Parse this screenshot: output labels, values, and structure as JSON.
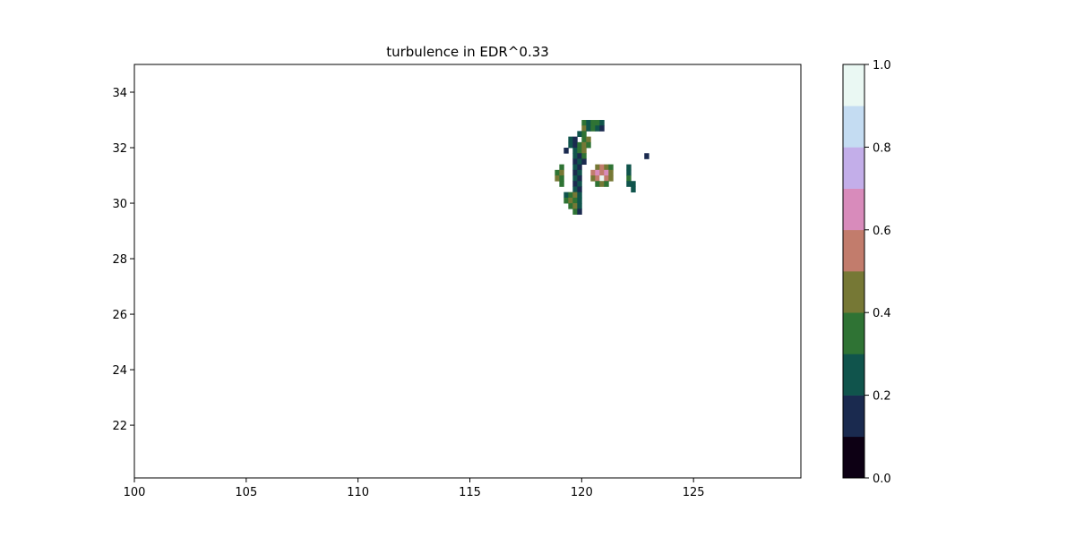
{
  "chart_data": {
    "type": "heatmap",
    "title": "turbulence in EDR^0.33",
    "xlabel": "",
    "ylabel": "",
    "xlim": [
      100,
      129.8
    ],
    "ylim": [
      20.1,
      35.0
    ],
    "x_ticks": [
      100,
      105,
      110,
      115,
      120,
      125
    ],
    "y_ticks": [
      22,
      24,
      26,
      28,
      30,
      32,
      34
    ],
    "grid": false,
    "colorbar": {
      "range": [
        0.0,
        1.0
      ],
      "bins": 10,
      "ticks": [
        0.0,
        0.2,
        0.4,
        0.6,
        0.8,
        1.0
      ],
      "tick_labels": [
        "0.0",
        "0.2",
        "0.4",
        "0.6",
        "0.8",
        "1.0"
      ],
      "colors": [
        "#0d0014",
        "#1a2a4f",
        "#10544c",
        "#2f7334",
        "#767835",
        "#c27c6c",
        "#d88bbb",
        "#c3aee9",
        "#c4dcf2",
        "#eaf8f3"
      ]
    },
    "cell_size_deg": 0.2,
    "cells": [
      [
        120.1,
        32.9,
        0.3
      ],
      [
        120.3,
        32.9,
        0.2
      ],
      [
        120.5,
        32.9,
        0.3
      ],
      [
        120.7,
        32.9,
        0.3
      ],
      [
        120.9,
        32.9,
        0.2
      ],
      [
        120.1,
        32.7,
        0.4
      ],
      [
        120.3,
        32.7,
        0.2
      ],
      [
        120.5,
        32.7,
        0.3
      ],
      [
        120.7,
        32.7,
        0.2
      ],
      [
        120.9,
        32.7,
        0.1
      ],
      [
        119.9,
        32.5,
        0.2
      ],
      [
        120.1,
        32.5,
        0.3
      ],
      [
        119.5,
        32.3,
        0.2
      ],
      [
        119.7,
        32.3,
        0.1
      ],
      [
        120.1,
        32.3,
        0.3
      ],
      [
        120.3,
        32.3,
        0.4
      ],
      [
        119.5,
        32.1,
        0.2
      ],
      [
        119.7,
        32.1,
        0.1
      ],
      [
        119.9,
        32.1,
        0.3
      ],
      [
        120.1,
        32.1,
        0.4
      ],
      [
        120.3,
        32.1,
        0.3
      ],
      [
        119.3,
        31.9,
        0.1
      ],
      [
        119.7,
        31.9,
        0.2
      ],
      [
        119.9,
        31.9,
        0.3
      ],
      [
        120.1,
        31.9,
        0.4
      ],
      [
        119.7,
        31.7,
        0.2
      ],
      [
        119.9,
        31.7,
        0.1
      ],
      [
        120.1,
        31.7,
        0.3
      ],
      [
        122.9,
        31.7,
        0.1
      ],
      [
        119.7,
        31.5,
        0.1
      ],
      [
        119.9,
        31.5,
        0.2
      ],
      [
        120.1,
        31.5,
        0.1
      ],
      [
        119.1,
        31.3,
        0.3
      ],
      [
        119.7,
        31.3,
        0.2
      ],
      [
        119.9,
        31.3,
        0.1
      ],
      [
        120.7,
        31.3,
        0.4
      ],
      [
        120.9,
        31.3,
        0.5
      ],
      [
        121.1,
        31.3,
        0.4
      ],
      [
        121.3,
        31.3,
        0.3
      ],
      [
        122.1,
        31.3,
        0.2
      ],
      [
        118.9,
        31.1,
        0.3
      ],
      [
        119.1,
        31.1,
        0.4
      ],
      [
        119.7,
        31.1,
        0.1
      ],
      [
        119.9,
        31.1,
        0.2
      ],
      [
        120.5,
        31.1,
        0.5
      ],
      [
        120.7,
        31.1,
        0.6
      ],
      [
        120.9,
        31.1,
        0.5
      ],
      [
        121.1,
        31.1,
        0.6
      ],
      [
        121.3,
        31.1,
        0.4
      ],
      [
        122.1,
        31.1,
        0.2
      ],
      [
        118.9,
        30.9,
        0.4
      ],
      [
        119.1,
        30.9,
        0.3
      ],
      [
        119.7,
        30.9,
        0.2
      ],
      [
        119.9,
        30.9,
        0.1
      ],
      [
        120.5,
        30.9,
        0.4
      ],
      [
        120.7,
        30.9,
        0.5
      ],
      [
        120.9,
        30.9,
        0.9
      ],
      [
        121.1,
        30.9,
        0.5
      ],
      [
        121.3,
        30.9,
        0.4
      ],
      [
        122.1,
        30.9,
        0.3
      ],
      [
        119.1,
        30.7,
        0.3
      ],
      [
        119.7,
        30.7,
        0.1
      ],
      [
        119.9,
        30.7,
        0.2
      ],
      [
        120.7,
        30.7,
        0.3
      ],
      [
        120.9,
        30.7,
        0.4
      ],
      [
        121.1,
        30.7,
        0.3
      ],
      [
        122.1,
        30.7,
        0.2
      ],
      [
        122.3,
        30.7,
        0.2
      ],
      [
        119.7,
        30.5,
        0.2
      ],
      [
        119.9,
        30.5,
        0.1
      ],
      [
        122.3,
        30.5,
        0.2
      ],
      [
        119.3,
        30.3,
        0.2
      ],
      [
        119.5,
        30.3,
        0.3
      ],
      [
        119.7,
        30.3,
        0.4
      ],
      [
        119.9,
        30.3,
        0.2
      ],
      [
        119.3,
        30.1,
        0.3
      ],
      [
        119.5,
        30.1,
        0.4
      ],
      [
        119.7,
        30.1,
        0.3
      ],
      [
        119.9,
        30.1,
        0.2
      ],
      [
        119.5,
        29.9,
        0.3
      ],
      [
        119.7,
        29.9,
        0.4
      ],
      [
        119.9,
        29.9,
        0.2
      ],
      [
        119.7,
        29.7,
        0.3
      ],
      [
        119.9,
        29.7,
        0.1
      ]
    ]
  }
}
